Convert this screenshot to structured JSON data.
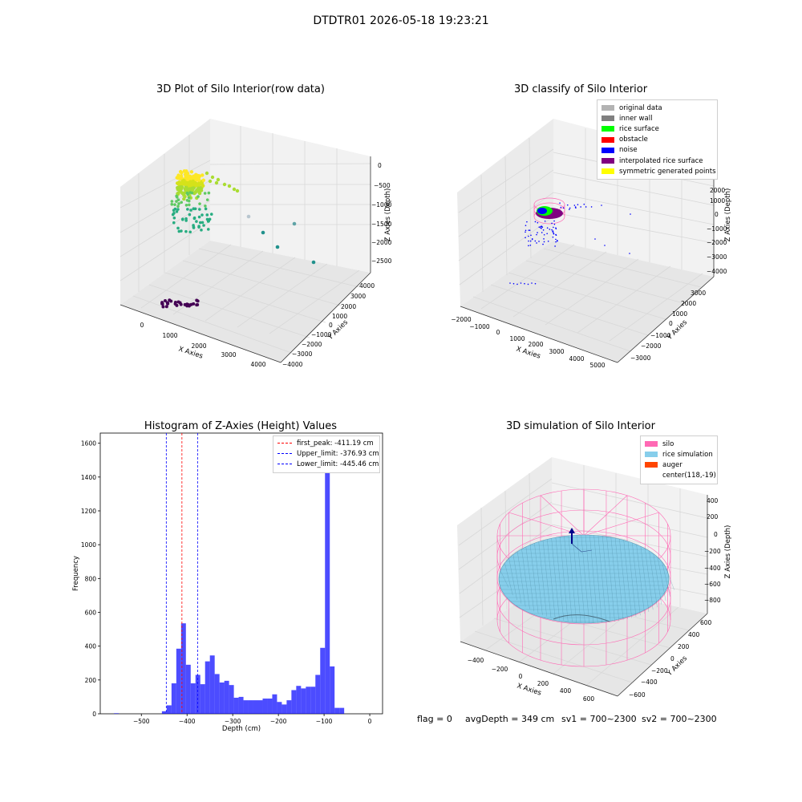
{
  "suptitle": "DTDTR01 2026-05-18 19:23:21",
  "chart_data": [
    {
      "type": "scatter",
      "title": "3D Plot of Silo Interior(row data)",
      "projection": "3d",
      "xlabel": "X Axies",
      "ylabel": "Y Axies",
      "zlabel": "Z Axies (Depth)",
      "x_ticks": [
        "0",
        "1000",
        "2000",
        "3000",
        "4000"
      ],
      "y_ticks": [
        "4000",
        "3000",
        "2000",
        "1000",
        "0",
        "−1000",
        "−2000",
        "−3000",
        "−4000"
      ],
      "z_ticks": [
        "0",
        "−500",
        "−1000",
        "−1500",
        "−2000",
        "−2500"
      ],
      "colormap": "viridis"
    },
    {
      "type": "scatter",
      "title": "3D classify of Silo Interior",
      "projection": "3d",
      "xlabel": "X Axies",
      "ylabel": "Y Axies",
      "zlabel": "Z Axies (Depth)",
      "x_ticks": [
        "−2000",
        "−1000",
        "0",
        "1000",
        "2000",
        "3000",
        "4000",
        "5000"
      ],
      "y_ticks": [
        "3000",
        "2000",
        "1000",
        "0",
        "−1000",
        "−2000",
        "−3000"
      ],
      "z_ticks": [
        "2000",
        "1000",
        "0",
        "−1000",
        "−2000",
        "−3000",
        "−4000"
      ],
      "z_ticks_partial": "000",
      "legend": [
        {
          "label": "original data",
          "color": "#b3b3b3"
        },
        {
          "label": "inner wall",
          "color": "#808080"
        },
        {
          "label": "rice surface",
          "color": "#00ff00"
        },
        {
          "label": "obstacle",
          "color": "#ff0000"
        },
        {
          "label": "noise",
          "color": "#0000ff"
        },
        {
          "label": "interpolated rice surface",
          "color": "#800080"
        },
        {
          "label": "symmetric generated points",
          "color": "#ffff00"
        }
      ],
      "legend_position": "upper right"
    },
    {
      "type": "histogram",
      "title": "Histogram of Z-Axies (Height) Values",
      "xlabel": "Depth (cm)",
      "ylabel": "Frequency",
      "xlim": [
        -590,
        28
      ],
      "ylim": [
        0,
        1660
      ],
      "x_ticks": [
        -500,
        -400,
        -300,
        -200,
        -100,
        0
      ],
      "y_ticks": [
        0,
        200,
        400,
        600,
        800,
        1000,
        1200,
        1400,
        1600
      ],
      "bar_color": "#0000ff",
      "bar_alpha": 0.7,
      "bin_width": 10.5,
      "bins": [
        [
          -560,
          3
        ],
        [
          -455,
          15
        ],
        [
          -444.5,
          50
        ],
        [
          -434,
          180
        ],
        [
          -423.5,
          385
        ],
        [
          -413,
          535
        ],
        [
          -402.5,
          290
        ],
        [
          -392,
          180
        ],
        [
          -381.5,
          230
        ],
        [
          -371,
          175
        ],
        [
          -360.5,
          310
        ],
        [
          -350,
          345
        ],
        [
          -339.5,
          235
        ],
        [
          -329,
          185
        ],
        [
          -318.5,
          195
        ],
        [
          -308,
          170
        ],
        [
          -297.5,
          95
        ],
        [
          -287,
          100
        ],
        [
          -276.5,
          80
        ],
        [
          -266,
          80
        ],
        [
          -255.5,
          80
        ],
        [
          -245,
          80
        ],
        [
          -234.5,
          90
        ],
        [
          -224,
          90
        ],
        [
          -213.5,
          115
        ],
        [
          -203,
          70
        ],
        [
          -192.5,
          55
        ],
        [
          -182,
          80
        ],
        [
          -171.5,
          140
        ],
        [
          -161,
          165
        ],
        [
          -150.5,
          150
        ],
        [
          -140,
          160
        ],
        [
          -129.5,
          160
        ],
        [
          -119,
          230
        ],
        [
          -108.5,
          390
        ],
        [
          -98,
          1570
        ],
        [
          -87.5,
          280
        ],
        [
          -77,
          35
        ],
        [
          -66.5,
          35
        ]
      ],
      "vlines": [
        {
          "label": "first_peak: -411.19 cm",
          "x": -411.19,
          "color": "#ff0000"
        },
        {
          "label": "Upper_limit: -376.93 cm",
          "x": -376.93,
          "color": "#0000ff"
        },
        {
          "label": "Lower_limit: -445.46 cm",
          "x": -445.46,
          "color": "#0000ff"
        }
      ],
      "legend_position": "upper right"
    },
    {
      "type": "surface",
      "title": "3D simulation of Silo Interior",
      "projection": "3d",
      "xlabel": "X Axies",
      "ylabel": "Y Axies",
      "zlabel": "Z Axies (Depth)",
      "x_ticks": [
        "−400",
        "−200",
        "0",
        "200",
        "400",
        "600"
      ],
      "y_ticks": [
        "600",
        "400",
        "200",
        "0",
        "−200",
        "−400",
        "−600"
      ],
      "z_ticks": [
        "400",
        "200",
        "0",
        "−200",
        "−400",
        "−600",
        "−800"
      ],
      "legend": [
        {
          "label": "silo",
          "color": "#ff69b4"
        },
        {
          "label": "rice simulation",
          "color": "#87ceeb"
        },
        {
          "label": "auger",
          "color": "#ff4500"
        },
        {
          "label": "center(118,-19)",
          "color": ""
        }
      ],
      "legend_position": "upper right"
    }
  ],
  "footer": {
    "flag": "flag = 0",
    "avg_depth": "avgDepth = 349 cm",
    "sv1": "sv1 = 700~2300",
    "sv2": "sv2 = 700~2300"
  }
}
